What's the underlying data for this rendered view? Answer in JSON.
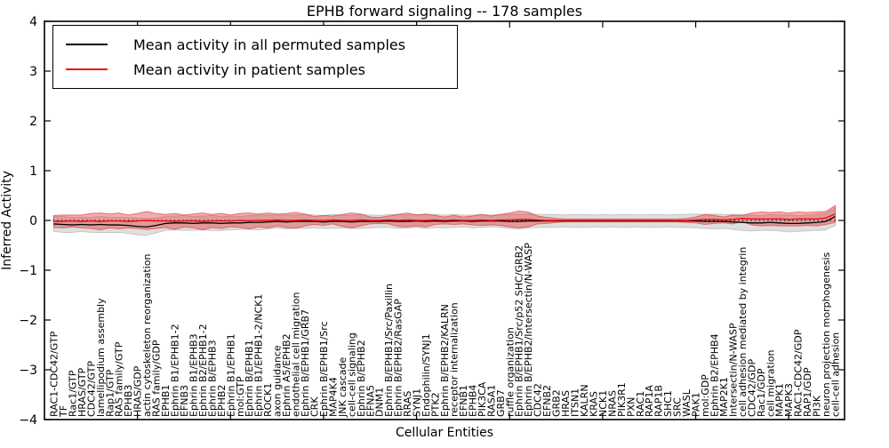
{
  "figure": {
    "title": "EPHB forward signaling -- 178 samples",
    "ylabel": "Inferred Activity",
    "xlabel": "Cellular Entities"
  },
  "legend": {
    "items": [
      {
        "label": "Mean activity in all permuted samples",
        "color": "#000000"
      },
      {
        "label": "Mean activity in patient samples",
        "color": "#ee1111"
      }
    ]
  },
  "colors": {
    "permuted_line": "#000000",
    "patient_line": "#ee1111",
    "permuted_band_fill": "rgba(140,140,140,0.28)",
    "permuted_band_stroke": "rgba(140,140,140,0.40)",
    "patient_band_fill": "rgba(228,57,60,0.42)",
    "patient_band_stroke": "rgba(220,50,50,0.60)",
    "zero_line": "#000000",
    "axis": "#000000"
  },
  "chart_data": {
    "type": "line",
    "title": "EPHB forward signaling -- 178 samples",
    "xlabel": "Cellular Entities",
    "ylabel": "Inferred Activity",
    "ylim": [
      -4,
      4
    ],
    "ytick_values": [
      -4,
      -3,
      -2,
      -1,
      0,
      1,
      2,
      3,
      4
    ],
    "ytick_labels": [
      "−4",
      "−3",
      "−2",
      "−1",
      "0",
      "1",
      "2",
      "3",
      "4"
    ],
    "xtick_top_values": [
      10,
      20,
      30,
      40,
      50,
      60,
      70,
      80
    ],
    "grid": false,
    "legend_position": "upper left",
    "zero_reference_line": 0,
    "categories": [
      "RAC1-CDC42/GTP",
      "TF",
      "Rac1/GTP",
      "HRAS/GTP",
      "CDC42/GTP",
      "lamellipodium assembly",
      "Rap1/GTP",
      "RAS family/GTP",
      "EPHB3",
      "HRAS/GDP",
      "actin cytoskeleton reorganization",
      "RAS family/GDP",
      "EPHB1",
      "Ephrin B1/EPHB1-2",
      "EFNB3",
      "Ephrin B1/EPHB3",
      "Ephrin B2/EPHB1-2",
      "Ephrin B/EPHB3",
      "EPHB2",
      "Ephrin B1/EPHB1",
      "mol:GTP",
      "Ephrin B/EPHB1",
      "Ephrin B1/EPHB1-2/NCK1",
      "ROCK1",
      "axon guidance",
      "Ephrin A5/EPHB2",
      "endothelial cell migration",
      "Ephrin B/EPHB1/GRB7",
      "CRK",
      "Ephrin B/EPHB1/Src",
      "MAP4K4",
      "JNK cascade",
      "cell-cell signaling",
      "Ephrin B/EPHB2",
      "EFNA5",
      "DNM1",
      "Ephrin B/EPHB1/Src/Paxillin",
      "Ephrin B/EPHB2/RasGAP",
      "RRAS",
      "SYNJ1",
      "Endophilin/SYNJ1",
      "PTK2",
      "Ephrin B/EPHB2/KALRN",
      "receptor internalization",
      "EFNB1",
      "EPHB4",
      "PIK3CA",
      "RASA1",
      "GRB7",
      "ruffle organization",
      "Ephrin B/EPHB1/Src/p52 SHC/GRB2",
      "Ephrin B/EPHB2/Intersectin/N-WASP",
      "CDC42",
      "EFNB2",
      "GRB2",
      "HRAS",
      "ITSN1",
      "KALRN",
      "KRAS",
      "NCK1",
      "NRAS",
      "PIK3R1",
      "PXN",
      "RAC1",
      "RAP1A",
      "RAP1B",
      "SHC1",
      "SRC",
      "WASL",
      "PAK1",
      "mol:GDP",
      "Ephrin B2/EPHB4",
      "MAP2K1",
      "Intersectin/N-WASP",
      "cell adhesion mediated by integrin",
      "CDC42/GDP",
      "Rac1/GDP",
      "cell migration",
      "MAPK1",
      "MAPK3",
      "RAC1-CDC42/GDP",
      "RAP1/GDP",
      "PI3K",
      "neuron projection morphogenesis",
      "cell-cell adhesion"
    ],
    "series": [
      {
        "name": "Mean activity in all permuted samples",
        "values": [
          -0.07,
          -0.08,
          -0.09,
          -0.08,
          -0.09,
          -0.08,
          -0.09,
          -0.09,
          -0.1,
          -0.12,
          -0.13,
          -0.1,
          -0.06,
          -0.05,
          -0.05,
          -0.06,
          -0.05,
          -0.05,
          -0.06,
          -0.05,
          -0.05,
          -0.04,
          -0.04,
          -0.03,
          -0.02,
          -0.03,
          -0.02,
          -0.02,
          -0.02,
          -0.03,
          -0.02,
          -0.02,
          -0.03,
          -0.02,
          -0.02,
          -0.02,
          -0.01,
          -0.02,
          -0.02,
          -0.01,
          -0.02,
          -0.01,
          -0.02,
          -0.01,
          -0.01,
          -0.02,
          -0.01,
          -0.01,
          -0.01,
          -0.02,
          -0.02,
          -0.01,
          -0.01,
          -0.01,
          -0.01,
          -0.01,
          -0.01,
          -0.01,
          -0.01,
          -0.01,
          -0.01,
          -0.01,
          -0.01,
          -0.01,
          -0.01,
          -0.01,
          -0.01,
          -0.01,
          -0.01,
          -0.01,
          -0.02,
          -0.02,
          -0.02,
          -0.03,
          -0.04,
          -0.05,
          -0.05,
          -0.04,
          -0.05,
          -0.06,
          -0.06,
          -0.05,
          -0.04,
          -0.02,
          0.08
        ]
      },
      {
        "name": "Mean activity in patient samples",
        "values": [
          -0.02,
          -0.02,
          -0.01,
          -0.02,
          -0.01,
          -0.02,
          -0.01,
          -0.01,
          -0.02,
          -0.01,
          0.0,
          -0.01,
          -0.01,
          -0.02,
          -0.01,
          -0.01,
          -0.02,
          -0.01,
          -0.01,
          -0.01,
          0.0,
          -0.01,
          0.0,
          0.0,
          0.01,
          0.0,
          0.0,
          0.01,
          0.0,
          0.0,
          0.01,
          0.0,
          0.0,
          0.01,
          0.0,
          0.0,
          0.01,
          0.0,
          0.01,
          0.0,
          0.0,
          0.01,
          0.0,
          0.01,
          0.0,
          0.0,
          0.01,
          0.0,
          0.01,
          0.01,
          0.02,
          0.02,
          0.01,
          0.0,
          0.0,
          0.0,
          0.0,
          0.0,
          0.0,
          0.0,
          0.0,
          0.0,
          0.0,
          0.0,
          0.0,
          0.0,
          0.0,
          0.0,
          0.0,
          0.01,
          0.02,
          0.02,
          0.01,
          0.02,
          0.04,
          0.03,
          0.03,
          0.03,
          0.03,
          0.02,
          0.03,
          0.03,
          0.03,
          0.05,
          0.13
        ]
      }
    ],
    "bands": [
      {
        "name": "permuted-std-band",
        "center_series": 0,
        "halfwidths": [
          0.15,
          0.16,
          0.15,
          0.14,
          0.15,
          0.16,
          0.15,
          0.15,
          0.16,
          0.17,
          0.17,
          0.15,
          0.14,
          0.14,
          0.15,
          0.14,
          0.14,
          0.15,
          0.14,
          0.14,
          0.13,
          0.14,
          0.15,
          0.14,
          0.13,
          0.14,
          0.13,
          0.14,
          0.13,
          0.13,
          0.14,
          0.13,
          0.13,
          0.14,
          0.13,
          0.12,
          0.13,
          0.14,
          0.13,
          0.13,
          0.14,
          0.13,
          0.13,
          0.13,
          0.12,
          0.13,
          0.13,
          0.12,
          0.13,
          0.14,
          0.15,
          0.14,
          0.13,
          0.13,
          0.13,
          0.12,
          0.13,
          0.13,
          0.12,
          0.13,
          0.12,
          0.13,
          0.13,
          0.12,
          0.13,
          0.13,
          0.12,
          0.13,
          0.13,
          0.14,
          0.14,
          0.15,
          0.14,
          0.15,
          0.16,
          0.16,
          0.15,
          0.16,
          0.16,
          0.17,
          0.16,
          0.16,
          0.16,
          0.17,
          0.18
        ]
      },
      {
        "name": "patient-std-band",
        "center_series": 1,
        "halfwidths": [
          0.12,
          0.13,
          0.12,
          0.13,
          0.15,
          0.17,
          0.14,
          0.16,
          0.13,
          0.15,
          0.18,
          0.15,
          0.13,
          0.16,
          0.12,
          0.14,
          0.17,
          0.13,
          0.15,
          0.12,
          0.14,
          0.16,
          0.13,
          0.15,
          0.12,
          0.14,
          0.16,
          0.12,
          0.08,
          0.1,
          0.08,
          0.12,
          0.15,
          0.12,
          0.07,
          0.06,
          0.08,
          0.12,
          0.14,
          0.11,
          0.13,
          0.09,
          0.07,
          0.09,
          0.07,
          0.09,
          0.11,
          0.09,
          0.11,
          0.14,
          0.17,
          0.15,
          0.08,
          0.06,
          0.04,
          0.03,
          0.03,
          0.03,
          0.03,
          0.03,
          0.03,
          0.03,
          0.03,
          0.03,
          0.03,
          0.03,
          0.03,
          0.03,
          0.04,
          0.06,
          0.1,
          0.08,
          0.06,
          0.09,
          0.06,
          0.12,
          0.14,
          0.13,
          0.14,
          0.13,
          0.14,
          0.13,
          0.14,
          0.13,
          0.17
        ]
      }
    ]
  }
}
